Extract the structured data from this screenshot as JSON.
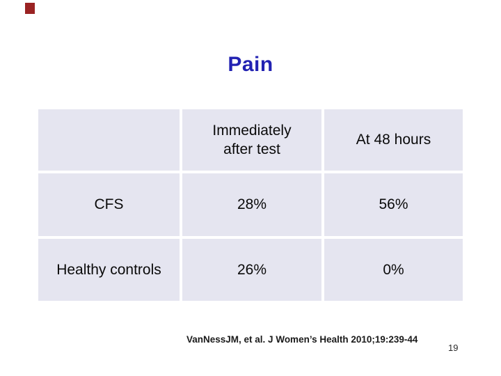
{
  "slide": {
    "title": "Pain",
    "title_color": "#2222b2",
    "accent_color": "#9a2323",
    "cell_background": "#e5e5f0"
  },
  "table": {
    "columns": [
      "",
      "Immediately\nafter test",
      "At 48 hours"
    ],
    "rows": [
      {
        "label": "CFS",
        "values": [
          "28%",
          "56%"
        ]
      },
      {
        "label": "Healthy controls",
        "values": [
          "26%",
          "0%"
        ]
      }
    ]
  },
  "chart_data": {
    "type": "table",
    "title": "Pain",
    "categories": [
      "Immediately after test",
      "At 48 hours"
    ],
    "series": [
      {
        "name": "CFS",
        "values": [
          28,
          56
        ]
      },
      {
        "name": "Healthy controls",
        "values": [
          26,
          0
        ]
      }
    ],
    "unit": "%"
  },
  "footer": {
    "citation": "VanNessJM, et al. J Women’s Health 2010;19:239-44",
    "page_number": "19"
  }
}
